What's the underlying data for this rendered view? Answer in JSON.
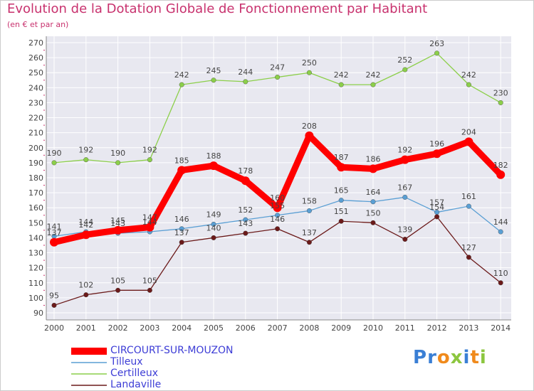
{
  "header": {
    "title": "Evolution de la Dotation Globale de Fonctionnement par Habitant",
    "subtitle": "(en € et par an)"
  },
  "logo": {
    "text": "Proxiti",
    "letters": [
      "P",
      "r",
      "o",
      "x",
      "i",
      "t",
      "i"
    ],
    "letter_colors": [
      "#3a7fd5",
      "#3a7fd5",
      "#f08a1c",
      "#8cc63f",
      "#3a7fd5",
      "#f08a1c",
      "#8cc63f"
    ]
  },
  "chart_data": {
    "type": "line",
    "title": "Evolution de la Dotation Globale de Fonctionnement par Habitant",
    "subtitle": "(en € et par an)",
    "x": [
      "2000",
      "2001",
      "2002",
      "2003",
      "2004",
      "2005",
      "2006",
      "2007",
      "2008",
      "2009",
      "2010",
      "2011",
      "2012",
      "2013",
      "2014"
    ],
    "ylim": [
      90,
      270
    ],
    "yticks": [
      90,
      100,
      110,
      120,
      130,
      140,
      150,
      160,
      170,
      180,
      190,
      200,
      210,
      220,
      230,
      240,
      250,
      260,
      270
    ],
    "grid": true,
    "legend_position": "bottom-left",
    "series": [
      {
        "name": "CIRCOURT-SUR-MOUZON",
        "color": "#ff0000",
        "emphasis": true,
        "values": [
          137,
          142,
          145,
          147,
          185,
          188,
          178,
          160,
          208,
          187,
          186,
          192,
          196,
          204,
          182
        ]
      },
      {
        "name": "Tilleux",
        "color": "#5a9fd4",
        "emphasis": false,
        "values": [
          141,
          144,
          143,
          144,
          146,
          149,
          152,
          155,
          158,
          165,
          164,
          167,
          157,
          161,
          144
        ]
      },
      {
        "name": "Certilleux",
        "color": "#8ccf4a",
        "emphasis": false,
        "values": [
          190,
          192,
          190,
          192,
          242,
          245,
          244,
          247,
          250,
          242,
          242,
          252,
          263,
          242,
          230
        ]
      },
      {
        "name": "Landaville",
        "color": "#6b1a1a",
        "emphasis": false,
        "values": [
          95,
          102,
          105,
          105,
          137,
          140,
          143,
          146,
          137,
          151,
          150,
          139,
          154,
          127,
          110
        ]
      }
    ]
  }
}
